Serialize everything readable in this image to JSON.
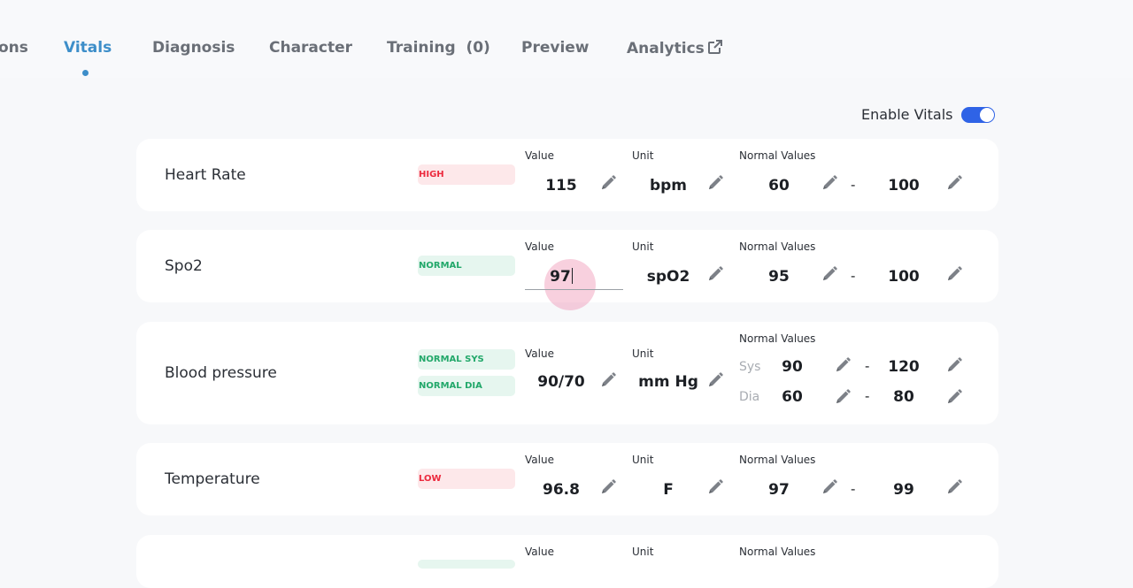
{
  "tabs": [
    {
      "label": "ons"
    },
    {
      "label": "Vitals",
      "active": true
    },
    {
      "label": "Diagnosis"
    },
    {
      "label": "Character"
    },
    {
      "label": "Training  (0)"
    },
    {
      "label": "Preview"
    },
    {
      "label": "Analytics",
      "icon": "external-link-icon"
    }
  ],
  "enable_vitals": {
    "label": "Enable Vitals",
    "on": true
  },
  "labels": {
    "value": "Value",
    "unit": "Unit",
    "normal_values": "Normal Values",
    "sys": "Sys",
    "dia": "Dia",
    "dash": "-"
  },
  "vitals": [
    {
      "name": "Heart Rate",
      "badge": "HIGH",
      "value": "115",
      "unit": "bpm",
      "normal_min": "60",
      "normal_max": "100"
    },
    {
      "name": "Spo2",
      "badge": "NORMAL",
      "value": "97",
      "unit": "spO2",
      "normal_min": "95",
      "normal_max": "100"
    },
    {
      "name": "Blood pressure",
      "badges": [
        "NORMAL SYS",
        "NORMAL DIA"
      ],
      "value": "90/70",
      "unit": "mm Hg",
      "sys_min": "90",
      "sys_max": "120",
      "dia_min": "60",
      "dia_max": "80"
    },
    {
      "name": "Temperature",
      "badge": "LOW",
      "value": "96.8",
      "unit": "F",
      "normal_min": "97",
      "normal_max": "99"
    }
  ],
  "colors": {
    "accent": "#3d8ec9",
    "toggle": "#2f63e6",
    "high": "#ec2a3e",
    "normal": "#22a86a"
  },
  "icons": {
    "edit": "pencil-icon"
  }
}
